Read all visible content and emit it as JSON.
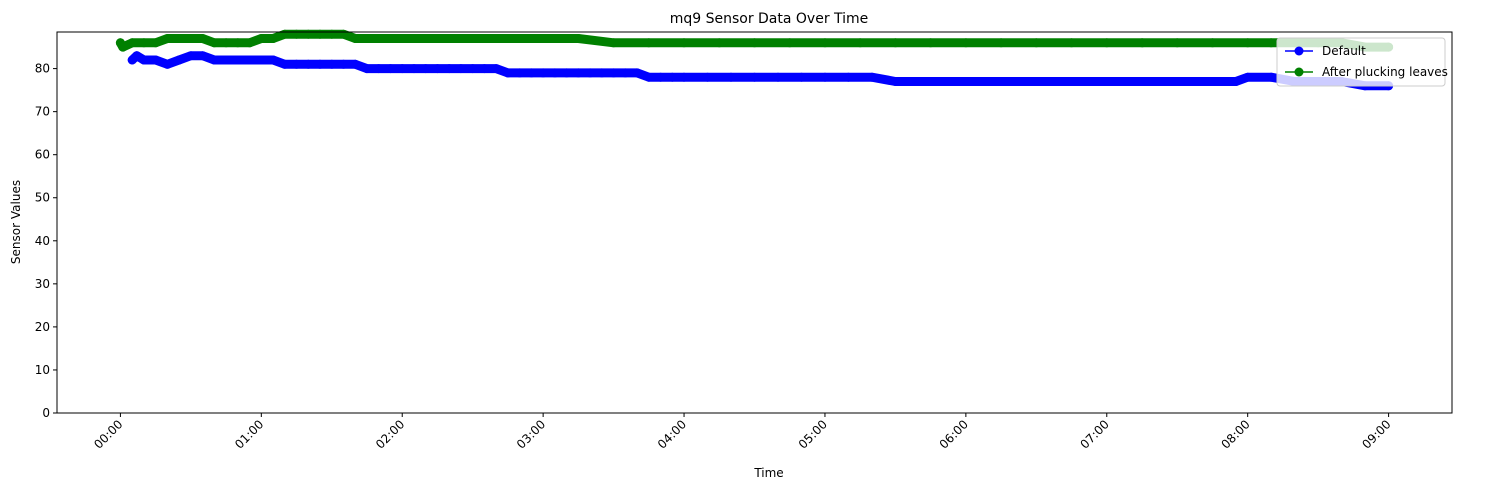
{
  "chart_data": {
    "type": "line",
    "title": "mq9 Sensor Data Over Time",
    "xlabel": "Time",
    "ylabel": "Sensor Values",
    "x_ticks": [
      "00:00",
      "01:00",
      "02:00",
      "03:00",
      "04:00",
      "05:00",
      "06:00",
      "07:00",
      "08:00",
      "09:00"
    ],
    "y_ticks": [
      0,
      10,
      20,
      30,
      40,
      50,
      60,
      70,
      80
    ],
    "xlim": [
      "23:33",
      "09:27"
    ],
    "ylim": [
      0,
      88.5
    ],
    "grid": false,
    "legend_location": "top-right",
    "series": [
      {
        "name": "Default",
        "color": "#0000ff",
        "marker": "circle",
        "x": [
          "00:05",
          "00:07",
          "00:10",
          "00:15",
          "00:20",
          "00:25",
          "00:30",
          "00:35",
          "00:40",
          "00:45",
          "00:50",
          "00:55",
          "01:00",
          "01:05",
          "01:10",
          "01:15",
          "01:20",
          "01:25",
          "01:30",
          "01:35",
          "01:40",
          "01:45",
          "01:50",
          "01:55",
          "02:00",
          "02:05",
          "02:10",
          "02:15",
          "02:20",
          "02:25",
          "02:30",
          "02:35",
          "02:40",
          "02:45",
          "02:50",
          "02:55",
          "03:00",
          "03:05",
          "03:10",
          "03:15",
          "03:20",
          "03:25",
          "03:30",
          "03:35",
          "03:40",
          "03:45",
          "03:50",
          "03:55",
          "04:00",
          "04:10",
          "04:20",
          "04:30",
          "04:40",
          "04:50",
          "05:00",
          "05:10",
          "05:20",
          "05:30",
          "05:40",
          "05:50",
          "06:00",
          "06:15",
          "06:30",
          "06:45",
          "07:00",
          "07:15",
          "07:30",
          "07:45",
          "07:55",
          "08:00",
          "08:10",
          "08:20",
          "08:30",
          "08:40",
          "08:50",
          "09:00"
        ],
        "y": [
          82,
          83,
          82,
          82,
          81,
          82,
          83,
          83,
          82,
          82,
          82,
          82,
          82,
          82,
          81,
          81,
          81,
          81,
          81,
          81,
          81,
          80,
          80,
          80,
          80,
          80,
          80,
          80,
          80,
          80,
          80,
          80,
          80,
          79,
          79,
          79,
          79,
          79,
          79,
          79,
          79,
          79,
          79,
          79,
          79,
          78,
          78,
          78,
          78,
          78,
          78,
          78,
          78,
          78,
          78,
          78,
          78,
          77,
          77,
          77,
          77,
          77,
          77,
          77,
          77,
          77,
          77,
          77,
          77,
          78,
          78,
          77,
          77,
          77,
          76,
          76
        ]
      },
      {
        "name": "After plucking leaves",
        "color": "#008000",
        "marker": "circle",
        "x": [
          "00:00",
          "00:01",
          "00:05",
          "00:10",
          "00:15",
          "00:20",
          "00:25",
          "00:30",
          "00:35",
          "00:40",
          "00:45",
          "00:50",
          "00:55",
          "01:00",
          "01:05",
          "01:10",
          "01:15",
          "01:20",
          "01:25",
          "01:30",
          "01:35",
          "01:40",
          "01:45",
          "01:50",
          "01:55",
          "02:00",
          "02:10",
          "02:20",
          "02:30",
          "02:40",
          "02:50",
          "03:00",
          "03:15",
          "03:30",
          "03:45",
          "04:00",
          "04:15",
          "04:30",
          "04:45",
          "05:00",
          "05:15",
          "05:30",
          "05:45",
          "06:00",
          "06:15",
          "06:30",
          "06:45",
          "07:00",
          "07:15",
          "07:30",
          "07:45",
          "08:00",
          "08:10",
          "08:20",
          "08:30",
          "08:40",
          "08:50",
          "09:00"
        ],
        "y": [
          86,
          85,
          86,
          86,
          86,
          87,
          87,
          87,
          87,
          86,
          86,
          86,
          86,
          87,
          87,
          88,
          88,
          88,
          88,
          88,
          88,
          87,
          87,
          87,
          87,
          87,
          87,
          87,
          87,
          87,
          87,
          87,
          87,
          86,
          86,
          86,
          86,
          86,
          86,
          86,
          86,
          86,
          86,
          86,
          86,
          86,
          86,
          86,
          86,
          86,
          86,
          86,
          86,
          86,
          86,
          86,
          85,
          85
        ]
      }
    ]
  }
}
